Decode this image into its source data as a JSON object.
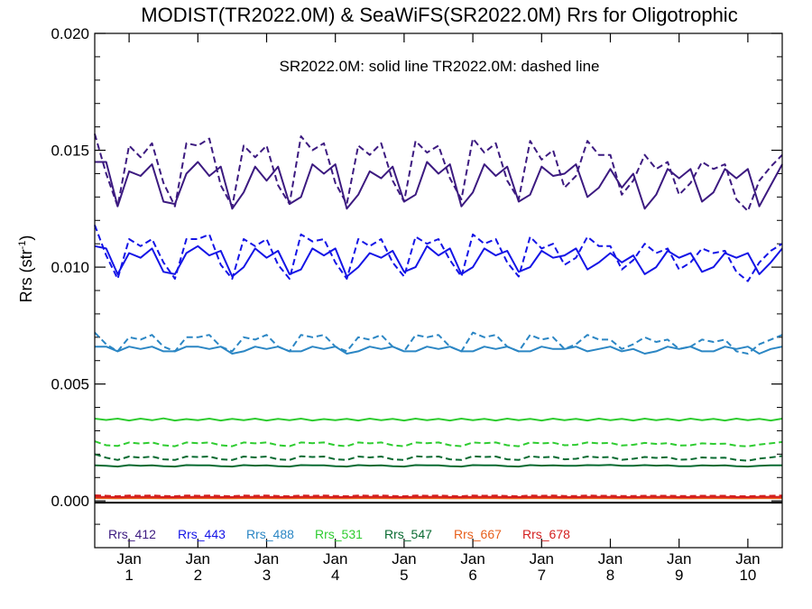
{
  "chart_data": {
    "type": "line",
    "title": "MODIST(TR2022.0M) & SeaWiFS(SR2022.0M)  Rrs for Oligotrophic",
    "annotation": "SR2022.0M: solid line   TR2022.0M: dashed line",
    "ylabel": "Rrs (str",
    "ylabel_sup": "-1",
    "ylabel_tail": ")",
    "ylim": [
      -0.002,
      0.02
    ],
    "yticks": [
      "0.000",
      "0.005",
      "0.010",
      "0.015",
      "0.020"
    ],
    "yticks_values": [
      0.0,
      0.005,
      0.01,
      0.015,
      0.02
    ],
    "xlim": [
      0,
      120
    ],
    "x_month_ticks": [
      {
        "month": "Jan",
        "year": "1",
        "x": 6
      },
      {
        "month": "Jan",
        "year": "2",
        "x": 18
      },
      {
        "month": "Jan",
        "year": "3",
        "x": 30
      },
      {
        "month": "Jan",
        "year": "4",
        "x": 42
      },
      {
        "month": "Jan",
        "year": "5",
        "x": 54
      },
      {
        "month": "Jan",
        "year": "6",
        "x": 66
      },
      {
        "month": "Jan",
        "year": "7",
        "x": 78
      },
      {
        "month": "Jan",
        "year": "8",
        "x": 90
      },
      {
        "month": "Jan",
        "year": "9",
        "x": 102
      },
      {
        "month": "Jan",
        "year": "10",
        "x": 114
      }
    ],
    "x": [
      0,
      2,
      4,
      6,
      8,
      10,
      12,
      14,
      16,
      18,
      20,
      22,
      24,
      26,
      28,
      30,
      32,
      34,
      36,
      38,
      40,
      42,
      44,
      46,
      48,
      50,
      52,
      54,
      56,
      58,
      60,
      62,
      64,
      66,
      68,
      70,
      72,
      74,
      76,
      78,
      80,
      82,
      84,
      86,
      88,
      90,
      92,
      94,
      96,
      98,
      100,
      102,
      104,
      106,
      108,
      110,
      112,
      114,
      116,
      118,
      120
    ],
    "series": [
      {
        "name": "Rrs_412",
        "color": "#3c1a80",
        "solid": [
          0.0145,
          0.0145,
          0.0126,
          0.0141,
          0.0139,
          0.0144,
          0.0128,
          0.0127,
          0.014,
          0.0145,
          0.0139,
          0.0143,
          0.0125,
          0.0132,
          0.0143,
          0.0137,
          0.0143,
          0.0127,
          0.013,
          0.0144,
          0.014,
          0.0144,
          0.0125,
          0.0131,
          0.0141,
          0.0138,
          0.0143,
          0.0128,
          0.0131,
          0.0145,
          0.014,
          0.0144,
          0.0126,
          0.0132,
          0.0144,
          0.0139,
          0.0143,
          0.0128,
          0.0131,
          0.0143,
          0.0139,
          0.014,
          0.0144,
          0.013,
          0.0134,
          0.0142,
          0.0134,
          0.014,
          0.0125,
          0.0131,
          0.0142,
          0.0138,
          0.0142,
          0.0128,
          0.0132,
          0.0142,
          0.0138,
          0.0142,
          0.0126,
          0.0135,
          0.0144
        ],
        "dashed": [
          0.0157,
          0.014,
          0.0126,
          0.0152,
          0.0147,
          0.0153,
          0.0136,
          0.0126,
          0.0153,
          0.0152,
          0.0155,
          0.0135,
          0.0126,
          0.0152,
          0.0147,
          0.0152,
          0.0135,
          0.0127,
          0.0156,
          0.015,
          0.0153,
          0.0136,
          0.0127,
          0.0152,
          0.0148,
          0.0153,
          0.0137,
          0.0128,
          0.0154,
          0.0149,
          0.0152,
          0.0138,
          0.0129,
          0.0155,
          0.0149,
          0.0153,
          0.0137,
          0.0129,
          0.0154,
          0.0146,
          0.015,
          0.0134,
          0.0139,
          0.0154,
          0.0148,
          0.0148,
          0.0131,
          0.0137,
          0.0148,
          0.0142,
          0.0145,
          0.0131,
          0.0136,
          0.0145,
          0.0142,
          0.0144,
          0.0129,
          0.0124,
          0.0137,
          0.0143,
          0.0148
        ]
      },
      {
        "name": "Rrs_443",
        "color": "#1414e6",
        "solid": [
          0.0109,
          0.0108,
          0.0097,
          0.0106,
          0.0104,
          0.0108,
          0.0098,
          0.0097,
          0.0106,
          0.0109,
          0.0105,
          0.0107,
          0.0096,
          0.01,
          0.0108,
          0.0104,
          0.0107,
          0.0097,
          0.0099,
          0.0108,
          0.0105,
          0.0108,
          0.0096,
          0.01,
          0.0106,
          0.0104,
          0.0107,
          0.0098,
          0.01,
          0.0109,
          0.0105,
          0.0108,
          0.0097,
          0.01,
          0.0108,
          0.0105,
          0.0107,
          0.0098,
          0.01,
          0.0107,
          0.0104,
          0.0105,
          0.0108,
          0.0099,
          0.0102,
          0.0106,
          0.0102,
          0.0105,
          0.0097,
          0.01,
          0.0107,
          0.0104,
          0.0106,
          0.0098,
          0.01,
          0.0106,
          0.0104,
          0.0106,
          0.0097,
          0.0102,
          0.0108
        ],
        "dashed": [
          0.0118,
          0.0105,
          0.0095,
          0.0112,
          0.0109,
          0.0112,
          0.0102,
          0.0095,
          0.0112,
          0.0112,
          0.0114,
          0.0101,
          0.0095,
          0.0112,
          0.0109,
          0.0112,
          0.0101,
          0.0095,
          0.0114,
          0.0111,
          0.0112,
          0.0102,
          0.0095,
          0.0112,
          0.0109,
          0.0112,
          0.0102,
          0.0096,
          0.0113,
          0.011,
          0.0112,
          0.0103,
          0.0096,
          0.0114,
          0.011,
          0.0112,
          0.0102,
          0.0096,
          0.0113,
          0.0108,
          0.011,
          0.0101,
          0.0104,
          0.0113,
          0.0109,
          0.0109,
          0.0099,
          0.0103,
          0.011,
          0.0106,
          0.0108,
          0.0099,
          0.0102,
          0.0108,
          0.0106,
          0.0107,
          0.0098,
          0.0094,
          0.0102,
          0.0107,
          0.011
        ]
      },
      {
        "name": "Rrs_488",
        "color": "#2b86c4",
        "solid": [
          0.0066,
          0.0066,
          0.0064,
          0.0066,
          0.0065,
          0.0066,
          0.0064,
          0.0064,
          0.0066,
          0.0066,
          0.0065,
          0.0066,
          0.0063,
          0.0064,
          0.0066,
          0.0065,
          0.0066,
          0.0064,
          0.0064,
          0.0066,
          0.0065,
          0.0066,
          0.0063,
          0.0064,
          0.0066,
          0.0065,
          0.0066,
          0.0064,
          0.0064,
          0.0066,
          0.0065,
          0.0066,
          0.0064,
          0.0064,
          0.0066,
          0.0065,
          0.0066,
          0.0064,
          0.0064,
          0.0066,
          0.0065,
          0.0065,
          0.0066,
          0.0064,
          0.0065,
          0.0066,
          0.0064,
          0.0065,
          0.0063,
          0.0064,
          0.0066,
          0.0065,
          0.0066,
          0.0064,
          0.0064,
          0.0066,
          0.0065,
          0.0066,
          0.0063,
          0.0065,
          0.0066
        ],
        "dashed": [
          0.0072,
          0.0067,
          0.0064,
          0.007,
          0.0069,
          0.0071,
          0.0066,
          0.0064,
          0.007,
          0.007,
          0.0071,
          0.0066,
          0.0064,
          0.007,
          0.0069,
          0.0071,
          0.0066,
          0.0064,
          0.0071,
          0.007,
          0.0071,
          0.0066,
          0.0064,
          0.007,
          0.0069,
          0.0071,
          0.0066,
          0.0064,
          0.0071,
          0.007,
          0.0071,
          0.0066,
          0.0064,
          0.0072,
          0.007,
          0.0071,
          0.0066,
          0.0064,
          0.0071,
          0.0069,
          0.007,
          0.0065,
          0.0067,
          0.0071,
          0.0069,
          0.0069,
          0.0065,
          0.0067,
          0.007,
          0.0068,
          0.0069,
          0.0065,
          0.0066,
          0.0069,
          0.0068,
          0.0069,
          0.0064,
          0.0063,
          0.0067,
          0.0069,
          0.0071
        ]
      },
      {
        "name": "Rrs_531",
        "color": "#2ecc30",
        "solid": [
          0.00352,
          0.00346,
          0.00352,
          0.00344,
          0.00352,
          0.00345,
          0.00353,
          0.00344,
          0.0035,
          0.00345,
          0.00352,
          0.00344,
          0.00351,
          0.00345,
          0.00352,
          0.00344,
          0.00351,
          0.00345,
          0.00352,
          0.00344,
          0.0035,
          0.00345,
          0.00351,
          0.00344,
          0.00352,
          0.00345,
          0.00351,
          0.00344,
          0.00352,
          0.00345,
          0.00351,
          0.00344,
          0.00352,
          0.00345,
          0.00351,
          0.00344,
          0.00352,
          0.00345,
          0.00351,
          0.00344,
          0.00352,
          0.00345,
          0.00351,
          0.00344,
          0.00352,
          0.00345,
          0.00351,
          0.00344,
          0.00352,
          0.00345,
          0.00351,
          0.00344,
          0.00352,
          0.00345,
          0.00351,
          0.00344,
          0.00352,
          0.00345,
          0.00351,
          0.00344,
          0.00352
        ],
        "dashed": [
          0.00255,
          0.00238,
          0.00235,
          0.0025,
          0.00245,
          0.0025,
          0.00238,
          0.00234,
          0.0025,
          0.00247,
          0.0025,
          0.00238,
          0.00234,
          0.0025,
          0.00246,
          0.0025,
          0.00238,
          0.00234,
          0.0025,
          0.00247,
          0.0025,
          0.00238,
          0.00234,
          0.0025,
          0.00246,
          0.0025,
          0.00238,
          0.00234,
          0.0025,
          0.00247,
          0.0025,
          0.00238,
          0.00234,
          0.0025,
          0.00247,
          0.0025,
          0.00238,
          0.00234,
          0.0025,
          0.00246,
          0.00249,
          0.00238,
          0.0024,
          0.0025,
          0.00246,
          0.00248,
          0.00237,
          0.0024,
          0.00248,
          0.00244,
          0.00247,
          0.00237,
          0.00238,
          0.00246,
          0.00244,
          0.00245,
          0.00236,
          0.00233,
          0.00241,
          0.00246,
          0.00252
        ]
      },
      {
        "name": "Rrs_547",
        "color": "#0a6b32",
        "solid": [
          0.00152,
          0.0015,
          0.00147,
          0.00153,
          0.0015,
          0.00152,
          0.00148,
          0.00147,
          0.00153,
          0.00152,
          0.00152,
          0.00148,
          0.00147,
          0.00153,
          0.00151,
          0.00152,
          0.00148,
          0.00147,
          0.00153,
          0.00152,
          0.00152,
          0.00148,
          0.00147,
          0.00153,
          0.00151,
          0.00152,
          0.00148,
          0.00147,
          0.00153,
          0.00152,
          0.00152,
          0.00148,
          0.00147,
          0.00153,
          0.00152,
          0.00152,
          0.00148,
          0.00147,
          0.00153,
          0.00151,
          0.00152,
          0.0015,
          0.0015,
          0.00153,
          0.00152,
          0.00154,
          0.0015,
          0.0015,
          0.00153,
          0.00151,
          0.00152,
          0.00148,
          0.00148,
          0.00152,
          0.00151,
          0.00152,
          0.00148,
          0.00147,
          0.0015,
          0.00152,
          0.00152
        ],
        "dashed": [
          0.002,
          0.00185,
          0.00175,
          0.0019,
          0.00185,
          0.0019,
          0.00178,
          0.00175,
          0.0019,
          0.00188,
          0.0019,
          0.00178,
          0.00175,
          0.0019,
          0.00186,
          0.0019,
          0.00178,
          0.00175,
          0.00191,
          0.00188,
          0.0019,
          0.00178,
          0.00175,
          0.0019,
          0.00186,
          0.0019,
          0.00178,
          0.00175,
          0.00191,
          0.00188,
          0.0019,
          0.00178,
          0.00175,
          0.00191,
          0.00188,
          0.0019,
          0.00178,
          0.00175,
          0.00191,
          0.00186,
          0.00189,
          0.00178,
          0.0018,
          0.0019,
          0.00186,
          0.00188,
          0.00176,
          0.0018,
          0.00188,
          0.00184,
          0.00187,
          0.00176,
          0.00178,
          0.00186,
          0.00184,
          0.00185,
          0.00175,
          0.00172,
          0.00181,
          0.00186,
          0.00192
        ]
      },
      {
        "name": "Rrs_667",
        "color": "#e8601c",
        "solid": [
          0.00012,
          0.00012,
          0.00011,
          0.00012,
          0.00012,
          0.00012,
          0.00011,
          0.00011,
          0.00012,
          0.00012,
          0.00012,
          0.00011,
          0.00011,
          0.00012,
          0.00012,
          0.00012,
          0.00011,
          0.00011,
          0.00012,
          0.00012,
          0.00012,
          0.00011,
          0.00011,
          0.00012,
          0.00012,
          0.00012,
          0.00011,
          0.00011,
          0.00012,
          0.00012,
          0.00012,
          0.00011,
          0.00011,
          0.00012,
          0.00012,
          0.00012,
          0.00011,
          0.00011,
          0.00012,
          0.00012,
          0.00012,
          0.00011,
          0.00011,
          0.00012,
          0.00012,
          0.00012,
          0.00011,
          0.00011,
          0.00012,
          0.00012,
          0.00012,
          0.00011,
          0.00011,
          0.00012,
          0.00012,
          0.00012,
          0.00011,
          0.00011,
          0.00012,
          0.00012,
          0.00012
        ],
        "dashed": [
          0.00018,
          0.00016,
          0.00015,
          0.00017,
          0.00017,
          0.00017,
          0.00015,
          0.00015,
          0.00017,
          0.00017,
          0.00017,
          0.00015,
          0.00015,
          0.00017,
          0.00017,
          0.00017,
          0.00015,
          0.00015,
          0.00017,
          0.00017,
          0.00017,
          0.00015,
          0.00015,
          0.00017,
          0.00017,
          0.00017,
          0.00015,
          0.00015,
          0.00017,
          0.00017,
          0.00017,
          0.00015,
          0.00015,
          0.00017,
          0.00017,
          0.00017,
          0.00015,
          0.00015,
          0.00017,
          0.00017,
          0.00017,
          0.00015,
          0.00016,
          0.00017,
          0.00017,
          0.00017,
          0.00015,
          0.00016,
          0.00017,
          0.00016,
          0.00017,
          0.00015,
          0.00015,
          0.00017,
          0.00016,
          0.00016,
          0.00015,
          0.00015,
          0.00016,
          0.00016,
          0.00017
        ]
      },
      {
        "name": "Rrs_678",
        "color": "#d41f1f",
        "solid": [
          0.00017,
          0.00017,
          0.00016,
          0.00017,
          0.00017,
          0.00017,
          0.00016,
          0.00016,
          0.00017,
          0.00017,
          0.00017,
          0.00016,
          0.00016,
          0.00017,
          0.00017,
          0.00017,
          0.00016,
          0.00016,
          0.00017,
          0.00017,
          0.00017,
          0.00016,
          0.00016,
          0.00017,
          0.00017,
          0.00017,
          0.00016,
          0.00016,
          0.00017,
          0.00017,
          0.00017,
          0.00016,
          0.00016,
          0.00017,
          0.00017,
          0.00017,
          0.00016,
          0.00016,
          0.00017,
          0.00017,
          0.00017,
          0.00016,
          0.00016,
          0.00017,
          0.00017,
          0.00017,
          0.00016,
          0.00016,
          0.00017,
          0.00017,
          0.00017,
          0.00016,
          0.00016,
          0.00017,
          0.00017,
          0.00017,
          0.00016,
          0.00016,
          0.00017,
          0.00017,
          0.00017
        ],
        "dashed": [
          0.00024,
          0.00022,
          0.0002,
          0.00023,
          0.00022,
          0.00023,
          0.00021,
          0.0002,
          0.00023,
          0.00022,
          0.00023,
          0.00021,
          0.0002,
          0.00023,
          0.00022,
          0.00023,
          0.00021,
          0.0002,
          0.00023,
          0.00022,
          0.00023,
          0.00021,
          0.0002,
          0.00023,
          0.00022,
          0.00023,
          0.00021,
          0.0002,
          0.00023,
          0.00022,
          0.00023,
          0.00021,
          0.0002,
          0.00023,
          0.00022,
          0.00023,
          0.00021,
          0.0002,
          0.00023,
          0.00022,
          0.00023,
          0.00021,
          0.00021,
          0.00023,
          0.00022,
          0.00022,
          0.00021,
          0.00021,
          0.00022,
          0.00022,
          0.00022,
          0.00021,
          0.00021,
          0.00022,
          0.00022,
          0.00022,
          0.0002,
          0.0002,
          0.00021,
          0.00022,
          0.00023
        ]
      }
    ],
    "zero_line": {
      "y": 0.0,
      "color": "#000000"
    }
  }
}
